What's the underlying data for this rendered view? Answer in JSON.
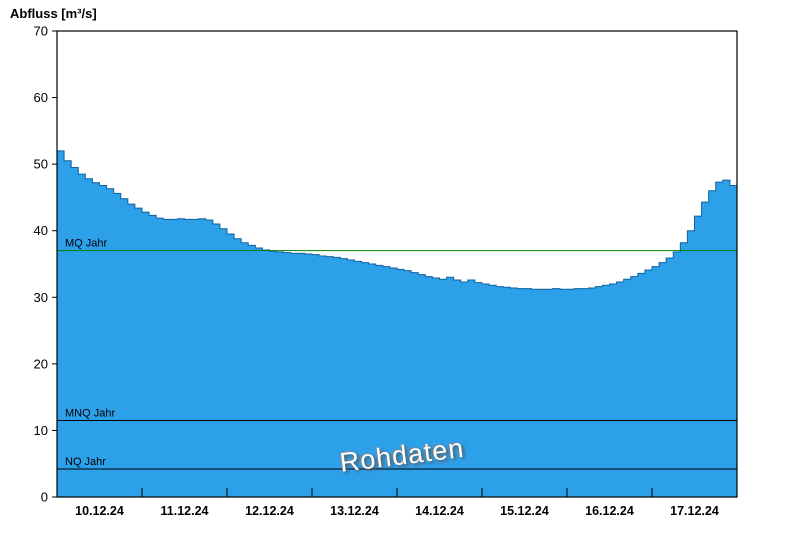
{
  "chart": {
    "title": "Abfluss [m³/s]",
    "watermark": "Rohdaten"
  },
  "chart_data": {
    "type": "area",
    "title": "Abfluss [m³/s]",
    "ylabel": "Abfluss [m³/s]",
    "xlabel": "",
    "ylim": [
      0,
      70
    ],
    "yticks": [
      0,
      10,
      20,
      30,
      40,
      50,
      60,
      70
    ],
    "categories": [
      "10.12.24",
      "11.12.24",
      "12.12.24",
      "13.12.24",
      "14.12.24",
      "15.12.24",
      "16.12.24",
      "17.12.24"
    ],
    "points_per_day": 12,
    "values": [
      52.0,
      50.5,
      49.5,
      48.5,
      47.8,
      47.2,
      46.8,
      46.3,
      45.6,
      44.8,
      44.0,
      43.4,
      42.8,
      42.3,
      41.9,
      41.7,
      41.7,
      41.8,
      41.7,
      41.7,
      41.8,
      41.6,
      41.0,
      40.3,
      39.5,
      38.8,
      38.2,
      37.8,
      37.4,
      37.1,
      36.9,
      36.8,
      36.7,
      36.6,
      36.6,
      36.5,
      36.4,
      36.2,
      36.1,
      36.0,
      35.8,
      35.6,
      35.4,
      35.2,
      35.0,
      34.8,
      34.6,
      34.4,
      34.2,
      34.0,
      33.7,
      33.4,
      33.1,
      32.9,
      32.7,
      33.0,
      32.6,
      32.3,
      32.6,
      32.2,
      32.0,
      31.8,
      31.6,
      31.5,
      31.4,
      31.3,
      31.3,
      31.2,
      31.2,
      31.2,
      31.3,
      31.2,
      31.2,
      31.3,
      31.3,
      31.4,
      31.6,
      31.8,
      32.0,
      32.3,
      32.7,
      33.1,
      33.6,
      34.1,
      34.6,
      35.2,
      35.9,
      36.8,
      38.2,
      40.0,
      42.2,
      44.3,
      46.0,
      47.3,
      47.6,
      46.8
    ],
    "reference_lines": [
      {
        "label": "MQ Jahr",
        "value": 37.0,
        "color": "#008200"
      },
      {
        "label": "MNQ Jahr",
        "value": 11.5,
        "color": "#000000"
      },
      {
        "label": "NQ Jahr",
        "value": 4.2,
        "color": "#000000"
      }
    ],
    "colors": {
      "area_fill": "#2da0ea",
      "area_stroke": "#0f62a0",
      "frame": "#000000",
      "tick_text": "#000000"
    },
    "legend_position": "none",
    "grid": false
  }
}
